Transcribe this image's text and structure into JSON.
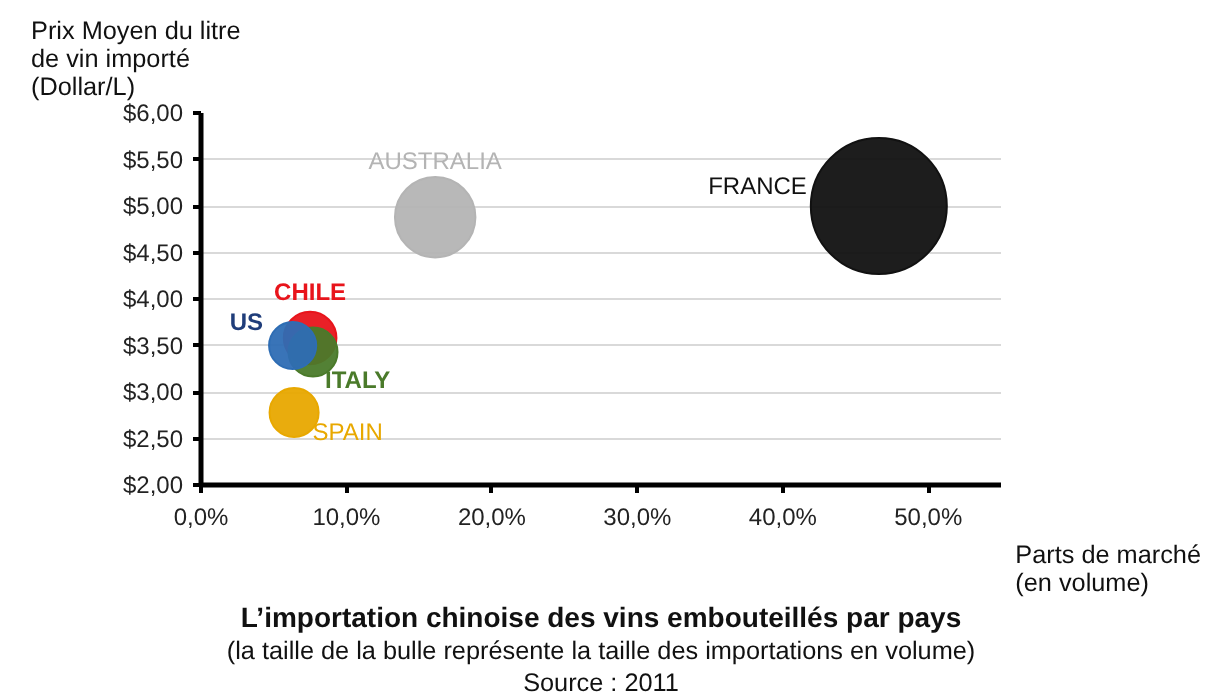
{
  "chart_data": {
    "type": "bubble",
    "title": "L’importation chinoise des vins embouteillés par pays",
    "subtitle": "(la taille de la bulle représente la taille des importations en volume)",
    "xlabel": "Parts de marché\n(en volume)",
    "ylabel": "Prix Moyen du litre\nde vin importé\n(Dollar/L)",
    "annotations": [
      "Source : 2011"
    ],
    "series": [
      {
        "name": "FRANCE",
        "color": "#111111",
        "x": [
          46.6
        ],
        "values": [
          5.0
        ],
        "sizes": [
          1.0
        ]
      },
      {
        "name": "AUSTRALIA",
        "color": "#b4b4b4",
        "x": [
          16.1
        ],
        "values": [
          4.88
        ],
        "sizes": [
          0.35
        ]
      },
      {
        "name": "CHILE",
        "color": "#e8141b",
        "x": [
          7.5
        ],
        "values": [
          3.58
        ],
        "sizes": [
          0.15
        ]
      },
      {
        "name": "ITALY",
        "color": "#4a7a2a",
        "x": [
          7.7
        ],
        "values": [
          3.43
        ],
        "sizes": [
          0.13
        ]
      },
      {
        "name": "US",
        "color": "#2e6db4",
        "x": [
          6.3
        ],
        "values": [
          3.5
        ],
        "sizes": [
          0.12
        ]
      },
      {
        "name": "SPAIN",
        "color": "#e8a800",
        "x": [
          6.4
        ],
        "values": [
          2.78
        ],
        "sizes": [
          0.13
        ]
      }
    ],
    "xlim": [
      0,
      55
    ],
    "xticks": [
      {
        "value": 0,
        "label": "0,0%"
      },
      {
        "value": 10,
        "label": "10,0%"
      },
      {
        "value": 20,
        "label": "20,0%"
      },
      {
        "value": 30,
        "label": "30,0%"
      },
      {
        "value": 40,
        "label": "40,0%"
      },
      {
        "value": 50,
        "label": "50,0%"
      }
    ],
    "ylim": [
      2,
      6
    ],
    "yticks": [
      {
        "value": 2,
        "label": "$2,00"
      },
      {
        "value": 2.5,
        "label": "$2,50"
      },
      {
        "value": 3,
        "label": "$3,00"
      },
      {
        "value": 3.5,
        "label": "$3,50"
      },
      {
        "value": 4,
        "label": "$4,00"
      },
      {
        "value": 4.5,
        "label": "$4,50"
      },
      {
        "value": 5,
        "label": "$5,00"
      },
      {
        "value": 5.5,
        "label": "$5,50"
      },
      {
        "value": 6,
        "label": "$6,00"
      }
    ],
    "grid": "y",
    "legend": false
  }
}
